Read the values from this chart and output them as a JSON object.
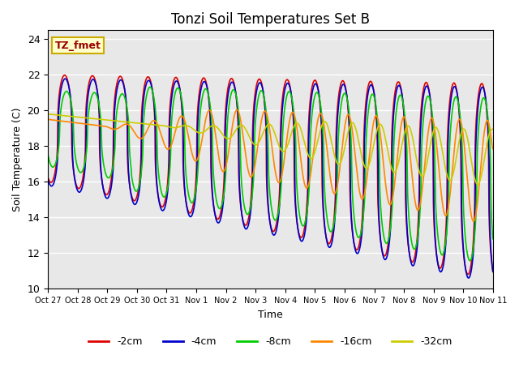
{
  "title": "Tonzi Soil Temperatures Set B",
  "xlabel": "Time",
  "ylabel": "Soil Temperature (C)",
  "ylim": [
    10,
    24.5
  ],
  "annotation_text": "TZ_fmet",
  "bg_color": "#e8e8e8",
  "fig_color": "#ffffff",
  "colors": {
    "-2cm": "#dd0000",
    "-4cm": "#0000cc",
    "-8cm": "#00cc00",
    "-16cm": "#ff8800",
    "-32cm": "#cccc00"
  },
  "legend_labels": [
    "-2cm",
    "-4cm",
    "-8cm",
    "-16cm",
    "-32cm"
  ],
  "tick_labels": [
    "Oct 27",
    "Oct 28",
    "Oct 29",
    "Oct 30",
    "Oct 31",
    "Nov 1",
    "Nov 2",
    "Nov 3",
    "Nov 4",
    "Nov 5",
    "Nov 6",
    "Nov 7",
    "Nov 8",
    "Nov 9",
    "Nov 10",
    "Nov 11"
  ],
  "tick_positions": [
    0,
    1,
    2,
    3,
    4,
    5,
    6,
    7,
    8,
    9,
    10,
    11,
    12,
    13,
    14,
    15
  ]
}
